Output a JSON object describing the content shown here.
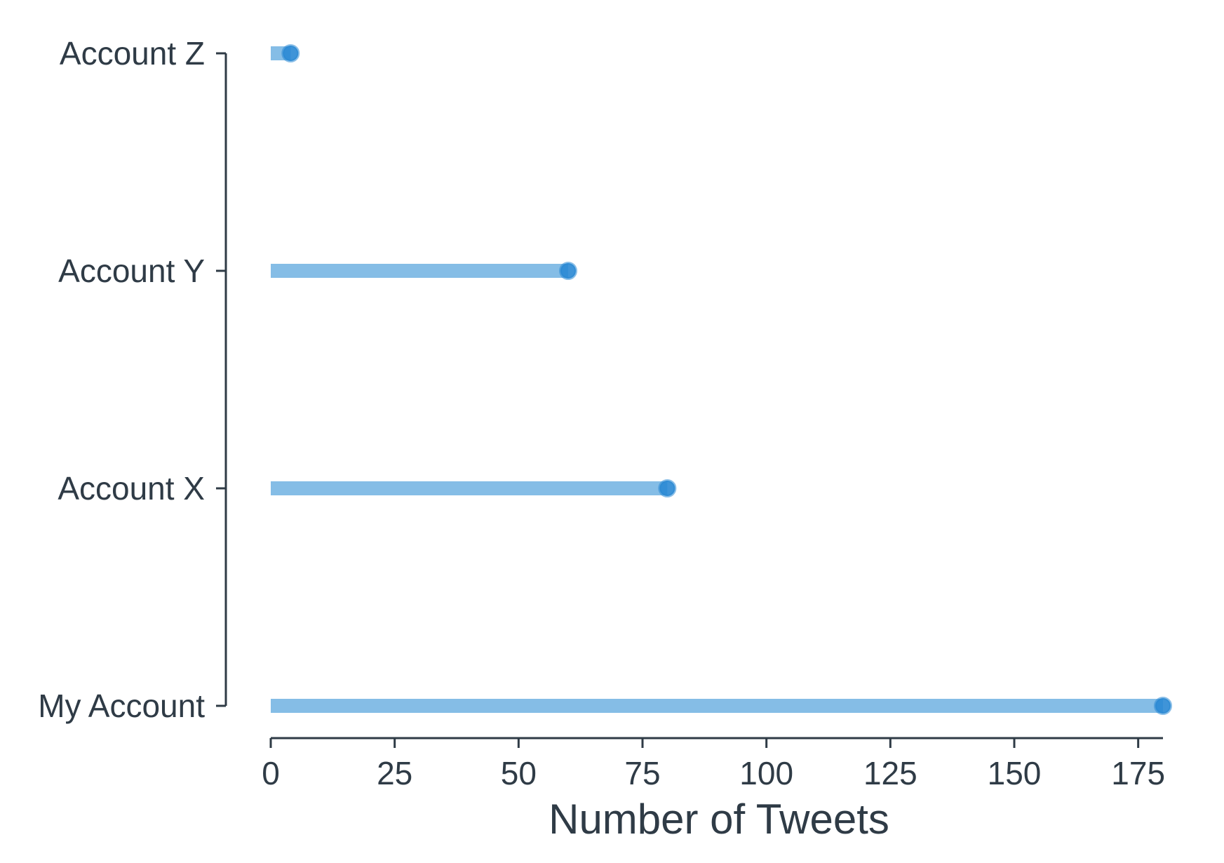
{
  "chart_data": {
    "type": "lollipop",
    "orientation": "horizontal",
    "categories": [
      "My Account",
      "Account X",
      "Account Y",
      "Account Z"
    ],
    "values": [
      180,
      80,
      60,
      4
    ],
    "xlabel": "Number of Tweets",
    "ylabel": "",
    "xlim": [
      0,
      180
    ],
    "x_ticks": [
      0,
      25,
      50,
      75,
      100,
      125,
      150,
      175
    ],
    "grid": false,
    "legend": "none",
    "colors": {
      "stem": "#85bde6",
      "marker": "#2a88d4",
      "axis": "#2f3b46",
      "text": "#2f3b46"
    }
  }
}
